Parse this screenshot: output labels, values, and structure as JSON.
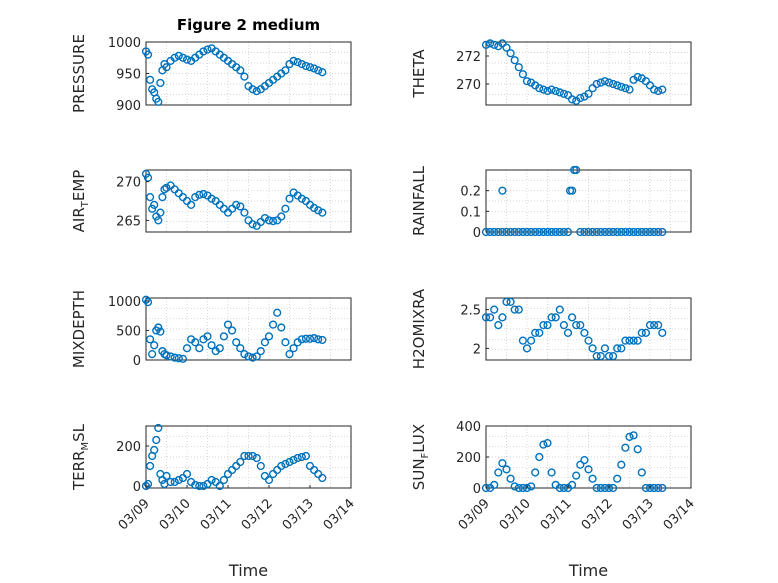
{
  "chart_data": [
    {
      "type": "scatter",
      "title": "Figure 2 medium",
      "ylabel": "PRESSURE",
      "ylim": [
        900,
        1000
      ],
      "yticks": [
        "900",
        "950",
        "1000"
      ],
      "xlim": [
        0,
        5
      ],
      "xticks": [],
      "marker_color": "#0072bd",
      "x": [
        0,
        0.05,
        0.1,
        0.15,
        0.2,
        0.25,
        0.3,
        0.35,
        0.4,
        0.45,
        0.5,
        0.6,
        0.7,
        0.8,
        0.9,
        1.0,
        1.1,
        1.2,
        1.3,
        1.4,
        1.5,
        1.6,
        1.7,
        1.8,
        1.9,
        2.0,
        2.1,
        2.2,
        2.3,
        2.4,
        2.5,
        2.6,
        2.7,
        2.8,
        2.9,
        3.0,
        3.1,
        3.2,
        3.3,
        3.4,
        3.5,
        3.6,
        3.7,
        3.8,
        3.9,
        4.0,
        4.1,
        4.2,
        4.3
      ],
      "y": [
        985,
        980,
        940,
        925,
        920,
        910,
        905,
        935,
        955,
        965,
        960,
        970,
        975,
        978,
        975,
        972,
        970,
        975,
        980,
        985,
        988,
        990,
        985,
        980,
        975,
        970,
        965,
        960,
        955,
        945,
        930,
        925,
        922,
        925,
        930,
        935,
        940,
        945,
        950,
        955,
        965,
        970,
        968,
        965,
        962,
        960,
        958,
        955,
        952
      ]
    },
    {
      "type": "scatter",
      "title": "",
      "ylabel": "THETA",
      "ylim": [
        268.5,
        273
      ],
      "yticks": [
        "270",
        "272"
      ],
      "xlim": [
        0,
        5
      ],
      "xticks": [],
      "marker_color": "#0072bd",
      "x": [
        0,
        0.1,
        0.2,
        0.3,
        0.4,
        0.5,
        0.6,
        0.7,
        0.8,
        0.9,
        1.0,
        1.1,
        1.2,
        1.3,
        1.4,
        1.5,
        1.6,
        1.7,
        1.8,
        1.9,
        2.0,
        2.1,
        2.2,
        2.3,
        2.4,
        2.5,
        2.6,
        2.7,
        2.8,
        2.9,
        3.0,
        3.1,
        3.2,
        3.3,
        3.4,
        3.5,
        3.6,
        3.7,
        3.8,
        3.9,
        4.0,
        4.1,
        4.2,
        4.3
      ],
      "y": [
        272.8,
        272.9,
        272.8,
        272.7,
        272.9,
        272.6,
        272.2,
        271.7,
        271.2,
        270.7,
        270.2,
        270.1,
        269.9,
        269.7,
        269.6,
        269.5,
        269.6,
        269.5,
        269.4,
        269.3,
        269.2,
        268.9,
        268.8,
        269.0,
        269.1,
        269.3,
        269.7,
        270.0,
        270.1,
        270.2,
        270.1,
        270.0,
        269.9,
        269.8,
        269.7,
        269.6,
        270.3,
        270.5,
        270.4,
        270.2,
        269.9,
        269.6,
        269.5,
        269.6
      ]
    },
    {
      "type": "scatter",
      "title": "",
      "ylabel": "AIR",
      "ylabel_sub": "T",
      "ylabel_suffix": "EMP",
      "ylim": [
        263.5,
        271.5
      ],
      "yticks": [
        "265",
        "270"
      ],
      "xlim": [
        0,
        5
      ],
      "xticks": [],
      "marker_color": "#0072bd",
      "x": [
        0,
        0.05,
        0.1,
        0.15,
        0.2,
        0.25,
        0.3,
        0.35,
        0.4,
        0.45,
        0.5,
        0.6,
        0.7,
        0.8,
        0.9,
        1.0,
        1.1,
        1.2,
        1.3,
        1.4,
        1.5,
        1.6,
        1.7,
        1.8,
        1.9,
        2.0,
        2.1,
        2.2,
        2.3,
        2.4,
        2.5,
        2.6,
        2.7,
        2.8,
        2.9,
        3.0,
        3.1,
        3.2,
        3.3,
        3.4,
        3.5,
        3.6,
        3.7,
        3.8,
        3.9,
        4.0,
        4.1,
        4.2,
        4.3
      ],
      "y": [
        271,
        270.5,
        268,
        266.5,
        267,
        265.5,
        265,
        266,
        268,
        269,
        269.2,
        269.5,
        269,
        268.5,
        268,
        267.5,
        267,
        268,
        268.3,
        268.4,
        268.2,
        267.8,
        267.5,
        267,
        266.5,
        266,
        266.5,
        267,
        266.8,
        266,
        265,
        264.5,
        264.3,
        264.8,
        265.3,
        265,
        264.9,
        265,
        265.5,
        266.5,
        267.8,
        268.6,
        268.2,
        267.8,
        267.5,
        267.0,
        266.6,
        266.3,
        266.0
      ]
    },
    {
      "type": "scatter",
      "title": "",
      "ylabel": "RAINFALL",
      "ylim": [
        0,
        0.3
      ],
      "yticks": [
        "0",
        "0.1",
        "0.2"
      ],
      "xlim": [
        0,
        5
      ],
      "xticks": [],
      "marker_color": "#0072bd",
      "x": [
        0,
        0.1,
        0.2,
        0.3,
        0.4,
        0.5,
        0.6,
        0.7,
        0.8,
        0.9,
        1.0,
        1.1,
        1.2,
        1.3,
        1.4,
        1.5,
        1.6,
        1.7,
        1.8,
        1.9,
        2.0,
        2.05,
        2.1,
        2.15,
        2.2,
        2.3,
        2.4,
        2.5,
        2.6,
        2.7,
        2.8,
        2.9,
        3.0,
        3.1,
        3.2,
        3.3,
        3.4,
        3.5,
        3.6,
        3.7,
        3.8,
        3.9,
        4.0,
        4.1,
        4.2,
        4.3,
        0.4
      ],
      "y": [
        0,
        0,
        0,
        0,
        0,
        0,
        0,
        0,
        0,
        0,
        0,
        0,
        0,
        0,
        0,
        0,
        0,
        0,
        0,
        0,
        0,
        0.2,
        0.2,
        0.3,
        0.3,
        0,
        0,
        0,
        0,
        0,
        0,
        0,
        0,
        0,
        0,
        0,
        0,
        0,
        0,
        0,
        0,
        0,
        0,
        0,
        0,
        0,
        0.2
      ]
    },
    {
      "type": "scatter",
      "title": "",
      "ylabel": "MIXDEPTH",
      "ylim": [
        0,
        1050
      ],
      "yticks": [
        "0",
        "500",
        "1000"
      ],
      "xlim": [
        0,
        5
      ],
      "xticks": [],
      "marker_color": "#0072bd",
      "x": [
        0,
        0.05,
        0.1,
        0.15,
        0.2,
        0.25,
        0.3,
        0.35,
        0.4,
        0.45,
        0.5,
        0.6,
        0.7,
        0.8,
        0.9,
        1.0,
        1.1,
        1.2,
        1.3,
        1.4,
        1.5,
        1.6,
        1.7,
        1.8,
        1.9,
        2.0,
        2.1,
        2.2,
        2.3,
        2.4,
        2.5,
        2.6,
        2.7,
        2.8,
        2.9,
        3.0,
        3.1,
        3.2,
        3.3,
        3.4,
        3.5,
        3.6,
        3.7,
        3.8,
        3.9,
        4.0,
        4.1,
        4.2,
        4.3
      ],
      "y": [
        1020,
        980,
        350,
        100,
        250,
        500,
        550,
        480,
        150,
        100,
        80,
        60,
        40,
        30,
        20,
        200,
        350,
        300,
        200,
        350,
        400,
        250,
        150,
        200,
        400,
        600,
        500,
        300,
        200,
        100,
        60,
        40,
        60,
        150,
        300,
        400,
        600,
        800,
        550,
        300,
        100,
        200,
        300,
        350,
        360,
        360,
        370,
        350,
        340
      ]
    },
    {
      "type": "scatter",
      "title": "",
      "ylabel": "H2OMIXRA",
      "ylim": [
        1.85,
        2.65
      ],
      "yticks": [
        "2",
        "2.5"
      ],
      "xlim": [
        0,
        5
      ],
      "xticks": [],
      "marker_color": "#0072bd",
      "x": [
        0,
        0.1,
        0.2,
        0.3,
        0.4,
        0.5,
        0.6,
        0.7,
        0.8,
        0.9,
        1.0,
        1.1,
        1.2,
        1.3,
        1.4,
        1.5,
        1.6,
        1.7,
        1.8,
        1.9,
        2.0,
        2.1,
        2.2,
        2.3,
        2.4,
        2.5,
        2.6,
        2.7,
        2.8,
        2.9,
        3.0,
        3.1,
        3.2,
        3.3,
        3.4,
        3.5,
        3.6,
        3.7,
        3.8,
        3.9,
        4.0,
        4.1,
        4.2,
        4.3
      ],
      "y": [
        2.4,
        2.4,
        2.5,
        2.3,
        2.4,
        2.6,
        2.6,
        2.5,
        2.5,
        2.1,
        2.0,
        2.1,
        2.2,
        2.2,
        2.3,
        2.3,
        2.4,
        2.4,
        2.5,
        2.3,
        2.2,
        2.4,
        2.3,
        2.3,
        2.2,
        2.1,
        2.0,
        1.9,
        1.9,
        2.0,
        1.9,
        1.9,
        2.0,
        2.0,
        2.1,
        2.1,
        2.1,
        2.1,
        2.2,
        2.2,
        2.3,
        2.3,
        2.3,
        2.2
      ]
    },
    {
      "type": "scatter",
      "title": "",
      "ylabel": "TERR",
      "ylabel_sub": "M",
      "ylabel_suffix": "SL",
      "ylim": [
        -10,
        300
      ],
      "yticks": [
        "0",
        "200"
      ],
      "xlim": [
        0,
        5
      ],
      "xticks": [
        "03/09",
        "03/10",
        "03/11",
        "03/12",
        "03/13",
        "03/14"
      ],
      "xlabel": "Time",
      "marker_color": "#0072bd",
      "x": [
        0,
        0.05,
        0.1,
        0.15,
        0.2,
        0.25,
        0.3,
        0.35,
        0.4,
        0.45,
        0.5,
        0.6,
        0.7,
        0.8,
        0.9,
        1.0,
        1.1,
        1.2,
        1.3,
        1.4,
        1.5,
        1.6,
        1.7,
        1.8,
        1.9,
        2.0,
        2.1,
        2.2,
        2.3,
        2.4,
        2.5,
        2.6,
        2.7,
        2.8,
        2.9,
        3.0,
        3.1,
        3.2,
        3.3,
        3.4,
        3.5,
        3.6,
        3.7,
        3.8,
        3.9,
        4.0,
        4.1,
        4.2,
        4.3
      ],
      "y": [
        0,
        10,
        100,
        150,
        180,
        230,
        290,
        60,
        30,
        10,
        50,
        20,
        20,
        30,
        40,
        60,
        20,
        5,
        0,
        0,
        10,
        30,
        20,
        0,
        30,
        60,
        80,
        100,
        120,
        150,
        150,
        150,
        140,
        100,
        50,
        30,
        60,
        80,
        100,
        110,
        120,
        130,
        140,
        145,
        150,
        100,
        80,
        60,
        40
      ]
    },
    {
      "type": "scatter",
      "title": "",
      "ylabel": "SUN",
      "ylabel_sub": "F",
      "ylabel_suffix": "LUX",
      "ylim": [
        0,
        400
      ],
      "yticks": [
        "0",
        "200",
        "400"
      ],
      "xlim": [
        0,
        5
      ],
      "xticks": [
        "03/09",
        "03/10",
        "03/11",
        "03/12",
        "03/13",
        "03/14"
      ],
      "xlabel": "Time",
      "marker_color": "#0072bd",
      "x": [
        0,
        0.1,
        0.2,
        0.3,
        0.4,
        0.5,
        0.6,
        0.7,
        0.8,
        0.9,
        1.0,
        1.1,
        1.2,
        1.3,
        1.4,
        1.5,
        1.6,
        1.7,
        1.8,
        1.9,
        2.0,
        2.1,
        2.2,
        2.3,
        2.4,
        2.5,
        2.6,
        2.7,
        2.8,
        2.9,
        3.0,
        3.1,
        3.2,
        3.3,
        3.4,
        3.5,
        3.6,
        3.7,
        3.8,
        3.9,
        4.0,
        4.1,
        4.2,
        4.3
      ],
      "y": [
        0,
        0,
        20,
        100,
        160,
        120,
        60,
        10,
        0,
        0,
        0,
        10,
        100,
        200,
        280,
        290,
        100,
        20,
        0,
        0,
        0,
        20,
        80,
        150,
        180,
        120,
        60,
        0,
        0,
        0,
        0,
        0,
        60,
        150,
        260,
        330,
        340,
        250,
        100,
        0,
        0,
        0,
        0,
        0
      ]
    }
  ]
}
